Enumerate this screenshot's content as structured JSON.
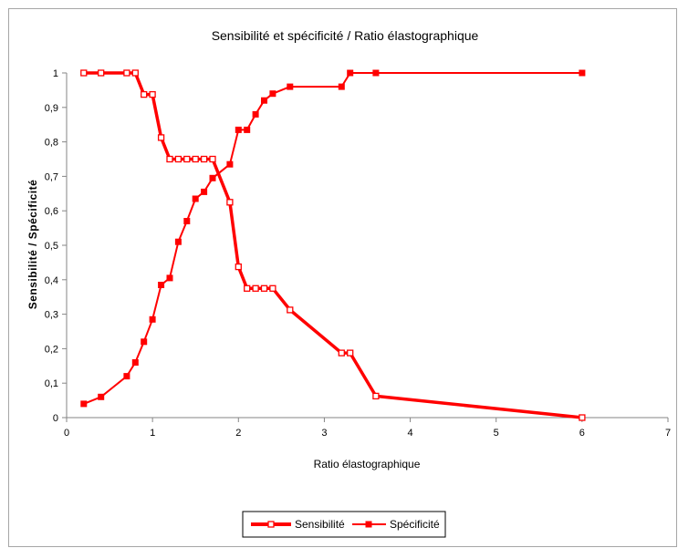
{
  "chart_data": {
    "type": "line",
    "title": "Sensibilité et spécificité / Ratio élastographique",
    "xlabel": "Ratio élastographique",
    "ylabel": "Sensibilité / Spécificité",
    "xlim": [
      0,
      7
    ],
    "ylim": [
      0,
      1
    ],
    "x_ticks": [
      "0",
      "1",
      "2",
      "3",
      "4",
      "5",
      "6",
      "7"
    ],
    "y_ticks": [
      "0",
      "0,1",
      "0,2",
      "0,3",
      "0,4",
      "0,5",
      "0,6",
      "0,7",
      "0,8",
      "0,9",
      "1"
    ],
    "legend_position": "bottom",
    "grid": false,
    "color": "#ff0000",
    "series": [
      {
        "name": "Sensibilité",
        "marker": "open-square",
        "points": [
          [
            0.2,
            1.0
          ],
          [
            0.4,
            1.0
          ],
          [
            0.7,
            1.0
          ],
          [
            0.8,
            1.0
          ],
          [
            0.9,
            0.9375
          ],
          [
            1.0,
            0.9375
          ],
          [
            1.1,
            0.8125
          ],
          [
            1.2,
            0.75
          ],
          [
            1.3,
            0.75
          ],
          [
            1.4,
            0.75
          ],
          [
            1.5,
            0.75
          ],
          [
            1.6,
            0.75
          ],
          [
            1.7,
            0.75
          ],
          [
            1.9,
            0.625
          ],
          [
            2.0,
            0.4375
          ],
          [
            2.1,
            0.375
          ],
          [
            2.2,
            0.375
          ],
          [
            2.3,
            0.375
          ],
          [
            2.4,
            0.375
          ],
          [
            2.6,
            0.3125
          ],
          [
            3.2,
            0.1875
          ],
          [
            3.3,
            0.1875
          ],
          [
            3.6,
            0.0625
          ],
          [
            6.0,
            0.0
          ]
        ]
      },
      {
        "name": "Spécificité",
        "marker": "filled-square",
        "points": [
          [
            0.2,
            0.04
          ],
          [
            0.4,
            0.06
          ],
          [
            0.7,
            0.12
          ],
          [
            0.8,
            0.16
          ],
          [
            0.9,
            0.22
          ],
          [
            1.0,
            0.285
          ],
          [
            1.1,
            0.385
          ],
          [
            1.2,
            0.405
          ],
          [
            1.3,
            0.51
          ],
          [
            1.4,
            0.57
          ],
          [
            1.5,
            0.635
          ],
          [
            1.6,
            0.655
          ],
          [
            1.7,
            0.695
          ],
          [
            1.9,
            0.735
          ],
          [
            2.0,
            0.835
          ],
          [
            2.1,
            0.835
          ],
          [
            2.2,
            0.88
          ],
          [
            2.3,
            0.92
          ],
          [
            2.4,
            0.94
          ],
          [
            2.6,
            0.96
          ],
          [
            3.2,
            0.96
          ],
          [
            3.3,
            1.0
          ],
          [
            3.6,
            1.0
          ],
          [
            6.0,
            1.0
          ]
        ]
      }
    ]
  }
}
